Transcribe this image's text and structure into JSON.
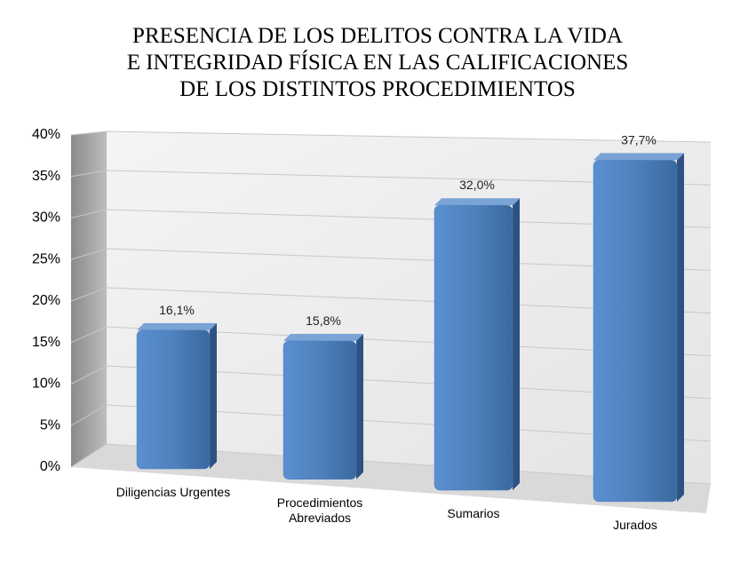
{
  "chart_data": {
    "type": "bar",
    "title": [
      "PRESENCIA DE LOS DELITOS CONTRA LA VIDA",
      "E INTEGRIDAD FÍSICA EN LAS CALIFICACIONES",
      "DE LOS DISTINTOS PROCEDIMIENTOS"
    ],
    "categories": [
      "Diligencias Urgentes",
      "Procedimientos Abreviados",
      "Sumarios",
      "Jurados"
    ],
    "values": [
      16.1,
      15.8,
      32.0,
      37.7
    ],
    "value_labels": [
      "16,1%",
      "15,8%",
      "32,0%",
      "37,7%"
    ],
    "color": "#4f81bd",
    "ylim": [
      0,
      40
    ],
    "yticks": [
      {
        "value": 0,
        "label": "0%"
      },
      {
        "value": 5,
        "label": "5%"
      },
      {
        "value": 10,
        "label": "10%"
      },
      {
        "value": 15,
        "label": "15%"
      },
      {
        "value": 20,
        "label": "20%"
      },
      {
        "value": 25,
        "label": "25%"
      },
      {
        "value": 30,
        "label": "30%"
      },
      {
        "value": 35,
        "label": "35%"
      },
      {
        "value": 40,
        "label": "40%"
      }
    ],
    "grid": true
  }
}
